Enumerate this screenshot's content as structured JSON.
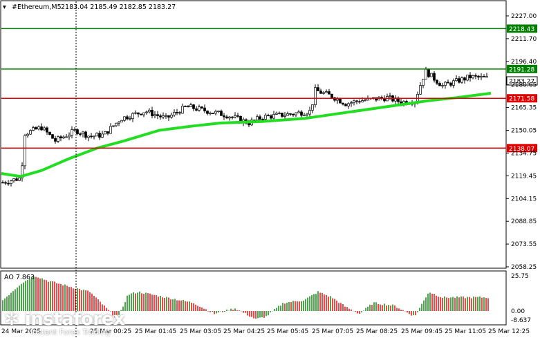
{
  "header": {
    "symbol": "#Ethereum,M5",
    "ohlc": "2183.04 2185.49 2182.85 2183.27"
  },
  "price_axis": {
    "ticks": [
      "2227.00",
      "2211.70",
      "2196.40",
      "2180.65",
      "2165.35",
      "2150.05",
      "2134.75",
      "2119.45",
      "2104.15",
      "2088.85",
      "2073.55",
      "2058.25"
    ]
  },
  "levels": [
    {
      "label": "2218.43",
      "color": "#008000"
    },
    {
      "label": "2191.28",
      "color": "#008000"
    },
    {
      "label": "2171.58",
      "color": "#e00000"
    },
    {
      "label": "2138.07",
      "color": "#e00000"
    }
  ],
  "current_price": "2183.27",
  "time_axis": {
    "labels": [
      "24 Mar 2025",
      "25 Mar 00:25",
      "25 Mar 01:45",
      "25 Mar 03:05",
      "25 Mar 04:25",
      "25 Mar 05:45",
      "25 Mar 07:05",
      "25 Mar 08:25",
      "25 Mar 09:45",
      "25 Mar 11:05",
      "25 Mar 12:25"
    ]
  },
  "oscillator": {
    "title": "AO 7.863",
    "ticks": [
      "25.75",
      "0.00",
      "-8.637"
    ]
  },
  "watermark": {
    "brand": "instaforex",
    "tagline": "Instant Forex Trading"
  },
  "colors": {
    "ma_line": "#22dd22",
    "ao_up": "#008000",
    "ao_down": "#e00000",
    "support_red": "#e00000",
    "resistance_green": "#008000"
  }
}
